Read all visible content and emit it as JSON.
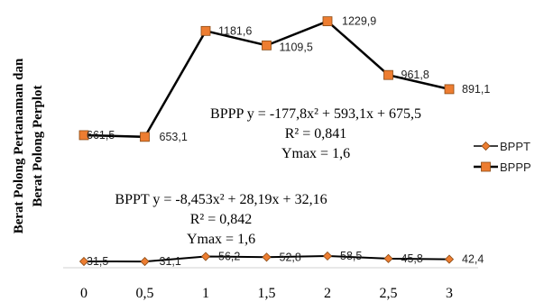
{
  "chart_data": {
    "type": "line",
    "title": "",
    "xlabel": "",
    "ylabel_lines": [
      "Berat Polong Pertanaman dan",
      "Berat Polong Perplot"
    ],
    "x": [
      0,
      0.5,
      1,
      1.5,
      2,
      2.5,
      3
    ],
    "x_tick_labels": [
      "0",
      "0,5",
      "1",
      "1,5",
      "2",
      "2,5",
      "3"
    ],
    "ylim": [
      0,
      1300
    ],
    "grid": false,
    "legend_position": "right",
    "series": [
      {
        "name": "BPPT",
        "color": "#ED7D31",
        "marker": "diamond",
        "values": [
          31.5,
          31.1,
          56.2,
          52.8,
          58.5,
          45.8,
          42.4
        ],
        "labels": [
          "31,5",
          "31,1",
          "56,2",
          "52,8",
          "58,5",
          "45,8",
          "42,4"
        ],
        "equation": "BPPT y = -8,453x² + 28,19x + 32,16",
        "r2": "R² = 0,842",
        "ymax": "Ymax = 1,6"
      },
      {
        "name": "BPPP",
        "color": "#ED7D31",
        "marker": "square",
        "values": [
          661.5,
          653.1,
          1181.6,
          1109.5,
          1229.9,
          961.8,
          891.1
        ],
        "labels": [
          "661,5",
          "653,1",
          "1181,6",
          "1109,5",
          "1229,9",
          "961,8",
          "891,1"
        ],
        "equation": "BPPP y = -177,8x² + 593,1x + 675,5",
        "r2": "R² = 0,841",
        "ymax": "Ymax = 1,6"
      }
    ]
  }
}
